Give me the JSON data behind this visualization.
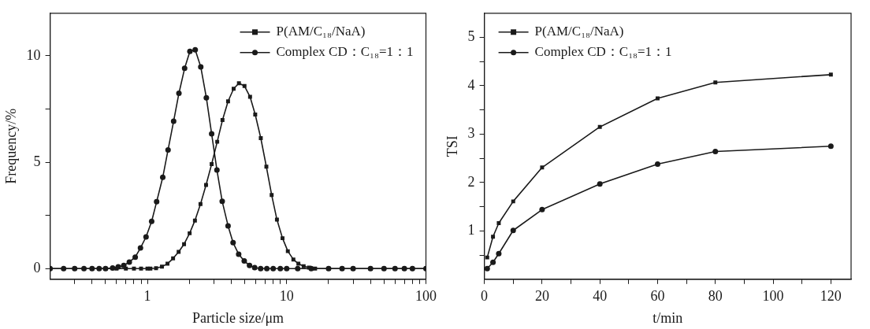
{
  "chart_data": [
    {
      "type": "line",
      "xlabel": "Particle size/μm",
      "ylabel": "Frequency/%",
      "log": "x",
      "xlim": [
        0.2,
        100
      ],
      "ylim": [
        -0.5,
        12
      ],
      "xticks": [
        {
          "value": 0.3,
          "label": null
        },
        {
          "value": 0.4,
          "label": null
        },
        {
          "value": 0.5,
          "label": null
        },
        {
          "value": 0.6,
          "label": null
        },
        {
          "value": 0.7,
          "label": null
        },
        {
          "value": 0.8,
          "label": null
        },
        {
          "value": 0.9,
          "label": null
        },
        1,
        {
          "value": 2,
          "label": null
        },
        {
          "value": 3,
          "label": null
        },
        {
          "value": 4,
          "label": null
        },
        {
          "value": 5,
          "label": null
        },
        {
          "value": 6,
          "label": null
        },
        {
          "value": 7,
          "label": null
        },
        {
          "value": 8,
          "label": null
        },
        {
          "value": 9,
          "label": null
        },
        10,
        {
          "value": 20,
          "label": null
        },
        {
          "value": 30,
          "label": null
        },
        {
          "value": 40,
          "label": null
        },
        {
          "value": 50,
          "label": null
        },
        {
          "value": 60,
          "label": null
        },
        {
          "value": 70,
          "label": null
        },
        {
          "value": 80,
          "label": null
        },
        {
          "value": 90,
          "label": null
        },
        100
      ],
      "yticks": [
        0,
        {
          "value": 2.5,
          "label": null
        },
        5,
        {
          "value": 7.5,
          "label": null
        },
        10
      ],
      "grid": false,
      "legend": "top right",
      "line_style": "solid",
      "series": [
        {
          "name": "P(AM/C₁₈/NaA)",
          "color": "#1a1a1a",
          "marker": "square",
          "x": [
            0.2,
            0.3,
            0.4,
            0.5,
            0.6,
            0.7,
            0.8,
            0.9,
            1.0,
            1.05,
            1.153,
            1.271,
            1.393,
            1.528,
            1.675,
            1.832,
            2.009,
            2.193,
            2.404,
            2.636,
            2.891,
            3.17,
            3.459,
            3.793,
            4.159,
            4.539,
            4.977,
            5.458,
            5.943,
            6.516,
            7.145,
            7.798,
            8.511,
            9.333,
            10.19,
            11.17,
            12.13,
            13.24,
            14.45,
            16,
            20,
            25,
            30,
            40,
            50,
            60,
            70,
            80,
            100
          ],
          "values": [
            0,
            0,
            0,
            0,
            0,
            0,
            0,
            0,
            0,
            0,
            0.02,
            0.09,
            0.23,
            0.48,
            0.79,
            1.15,
            1.66,
            2.26,
            3.03,
            3.93,
            4.91,
            5.96,
            6.98,
            7.86,
            8.45,
            8.71,
            8.58,
            8.07,
            7.24,
            6.13,
            4.79,
            3.46,
            2.3,
            1.43,
            0.82,
            0.43,
            0.23,
            0.11,
            0.05,
            0,
            0,
            0,
            0,
            0,
            0,
            0,
            0,
            0,
            0
          ]
        },
        {
          "name": "Complex CD：C₁₈=1：1",
          "color": "#1a1a1a",
          "marker": "circle",
          "x": [
            0.2,
            0.25,
            0.3,
            0.35,
            0.4,
            0.45,
            0.5,
            0.562,
            0.617,
            0.676,
            0.741,
            0.817,
            0.891,
            0.977,
            1.072,
            1.164,
            1.288,
            1.406,
            1.542,
            1.683,
            1.849,
            2.018,
            2.203,
            2.415,
            2.649,
            2.891,
            3.155,
            3.443,
            3.793,
            4.121,
            4.519,
            4.955,
            5.408,
            5.888,
            6.5,
            7.2,
            8,
            9,
            10,
            12,
            15,
            20,
            25,
            30,
            40,
            50,
            60,
            70,
            80,
            100
          ],
          "values": [
            0,
            0,
            0,
            0,
            0,
            0,
            0,
            0.03,
            0.08,
            0.15,
            0.31,
            0.54,
            0.97,
            1.49,
            2.22,
            3.14,
            4.29,
            5.58,
            6.93,
            8.24,
            9.41,
            10.21,
            10.28,
            9.48,
            8.03,
            6.33,
            4.63,
            3.16,
            2.01,
            1.22,
            0.68,
            0.36,
            0.15,
            0.05,
            0,
            0,
            0,
            0,
            0,
            0,
            0,
            0,
            0,
            0,
            0,
            0,
            0,
            0,
            0,
            0
          ]
        }
      ]
    },
    {
      "type": "line",
      "xlabel": "t/min",
      "ylabel": "TSI",
      "xlim": [
        0,
        127
      ],
      "ylim": [
        0,
        5.5
      ],
      "xticks": [
        0,
        {
          "value": 10,
          "label": null
        },
        20,
        {
          "value": 30,
          "label": null
        },
        40,
        {
          "value": 50,
          "label": null
        },
        60,
        {
          "value": 70,
          "label": null
        },
        80,
        {
          "value": 90,
          "label": null
        },
        100,
        {
          "value": 110,
          "label": null
        },
        120
      ],
      "yticks": [
        {
          "value": 0.5,
          "label": null
        },
        1,
        {
          "value": 1.5,
          "label": null
        },
        2,
        {
          "value": 2.5,
          "label": null
        },
        3,
        {
          "value": 3.5,
          "label": null
        },
        4,
        {
          "value": 4.5,
          "label": null
        },
        5
      ],
      "grid": false,
      "legend": "top left",
      "line_style": "solid",
      "series": [
        {
          "name": "P(AM/C₁₈/NaA)",
          "color": "#1a1a1a",
          "marker": "square",
          "x": [
            1,
            3,
            5,
            10,
            20,
            40,
            60,
            80,
            120
          ],
          "values": [
            0.45,
            0.88,
            1.16,
            1.61,
            2.31,
            3.15,
            3.74,
            4.07,
            4.23
          ]
        },
        {
          "name": "Complex CD：C₁₈=1：1",
          "color": "#1a1a1a",
          "marker": "circle",
          "x": [
            1,
            3,
            5,
            10,
            20,
            40,
            60,
            80,
            120
          ],
          "values": [
            0.22,
            0.35,
            0.53,
            1.01,
            1.44,
            1.97,
            2.38,
            2.64,
            2.75
          ]
        }
      ]
    }
  ]
}
